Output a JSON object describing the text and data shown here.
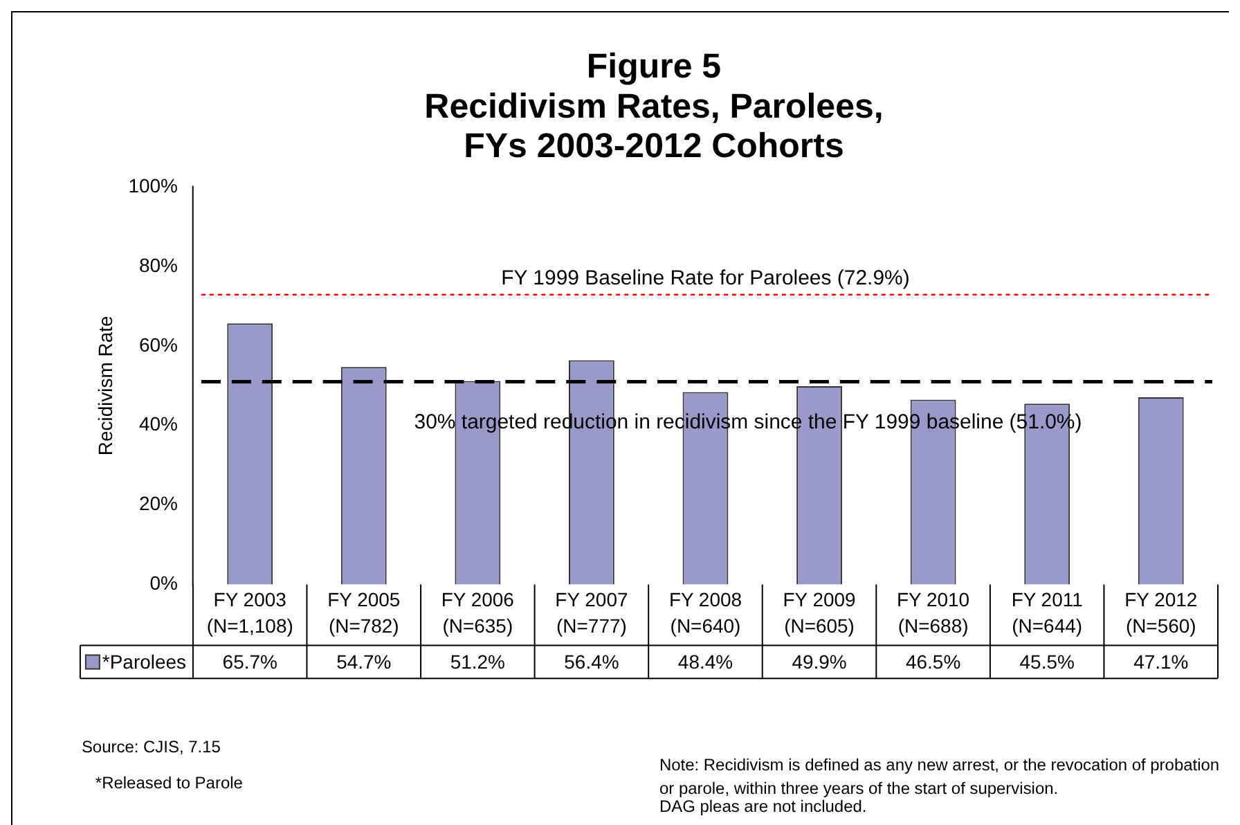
{
  "chart_data": {
    "type": "bar",
    "title": "Figure 5\nRecidivism Rates, Parolees,\nFYs 2003-2012 Cohorts",
    "ylabel": "Recidivism Rate",
    "categories": [
      "FY 2003\n(N=1,108)",
      "FY 2005\n(N=782)",
      "FY 2006\n(N=635)",
      "FY 2007\n(N=777)",
      "FY 2008\n(N=640)",
      "FY 2009\n(N=605)",
      "FY 2010\n(N=688)",
      "FY 2011\n(N=644)",
      "FY 2012\n(N=560)"
    ],
    "series": [
      {
        "name": "*Parolees",
        "color": "#9999cc",
        "values": [
          65.7,
          54.7,
          51.2,
          56.4,
          48.4,
          49.9,
          46.5,
          45.5,
          47.1
        ],
        "value_labels": [
          "65.7%",
          "54.7%",
          "51.2%",
          "56.4%",
          "48.4%",
          "49.9%",
          "46.5%",
          "45.5%",
          "47.1%"
        ]
      }
    ],
    "ylim": [
      0,
      100
    ],
    "yticks": [
      {
        "value": 0,
        "label": "0%"
      },
      {
        "value": 20,
        "label": "20%"
      },
      {
        "value": 40,
        "label": "40%"
      },
      {
        "value": 60,
        "label": "60%"
      },
      {
        "value": 80,
        "label": "80%"
      },
      {
        "value": 100,
        "label": "100%"
      }
    ],
    "ref_lines": [
      {
        "axis": "y",
        "value": 72.9,
        "label": "FY 1999 Baseline Rate for Parolees (72.9%)",
        "color": "#ff0000",
        "line_style": "dotted"
      },
      {
        "axis": "y",
        "value": 51.0,
        "label": "30% targeted reduction in recidivism since the FY 1999 baseline (51.0%)",
        "color": "#000000",
        "line_style": "dashed"
      }
    ],
    "annotations": [
      "Source: CJIS, 7.15",
      "*Released to Parole",
      "Note: Recidivism is defined as any new arrest, or the revocation of probation or parole, within three years of the start of supervision.",
      "DAG pleas are not included."
    ]
  }
}
